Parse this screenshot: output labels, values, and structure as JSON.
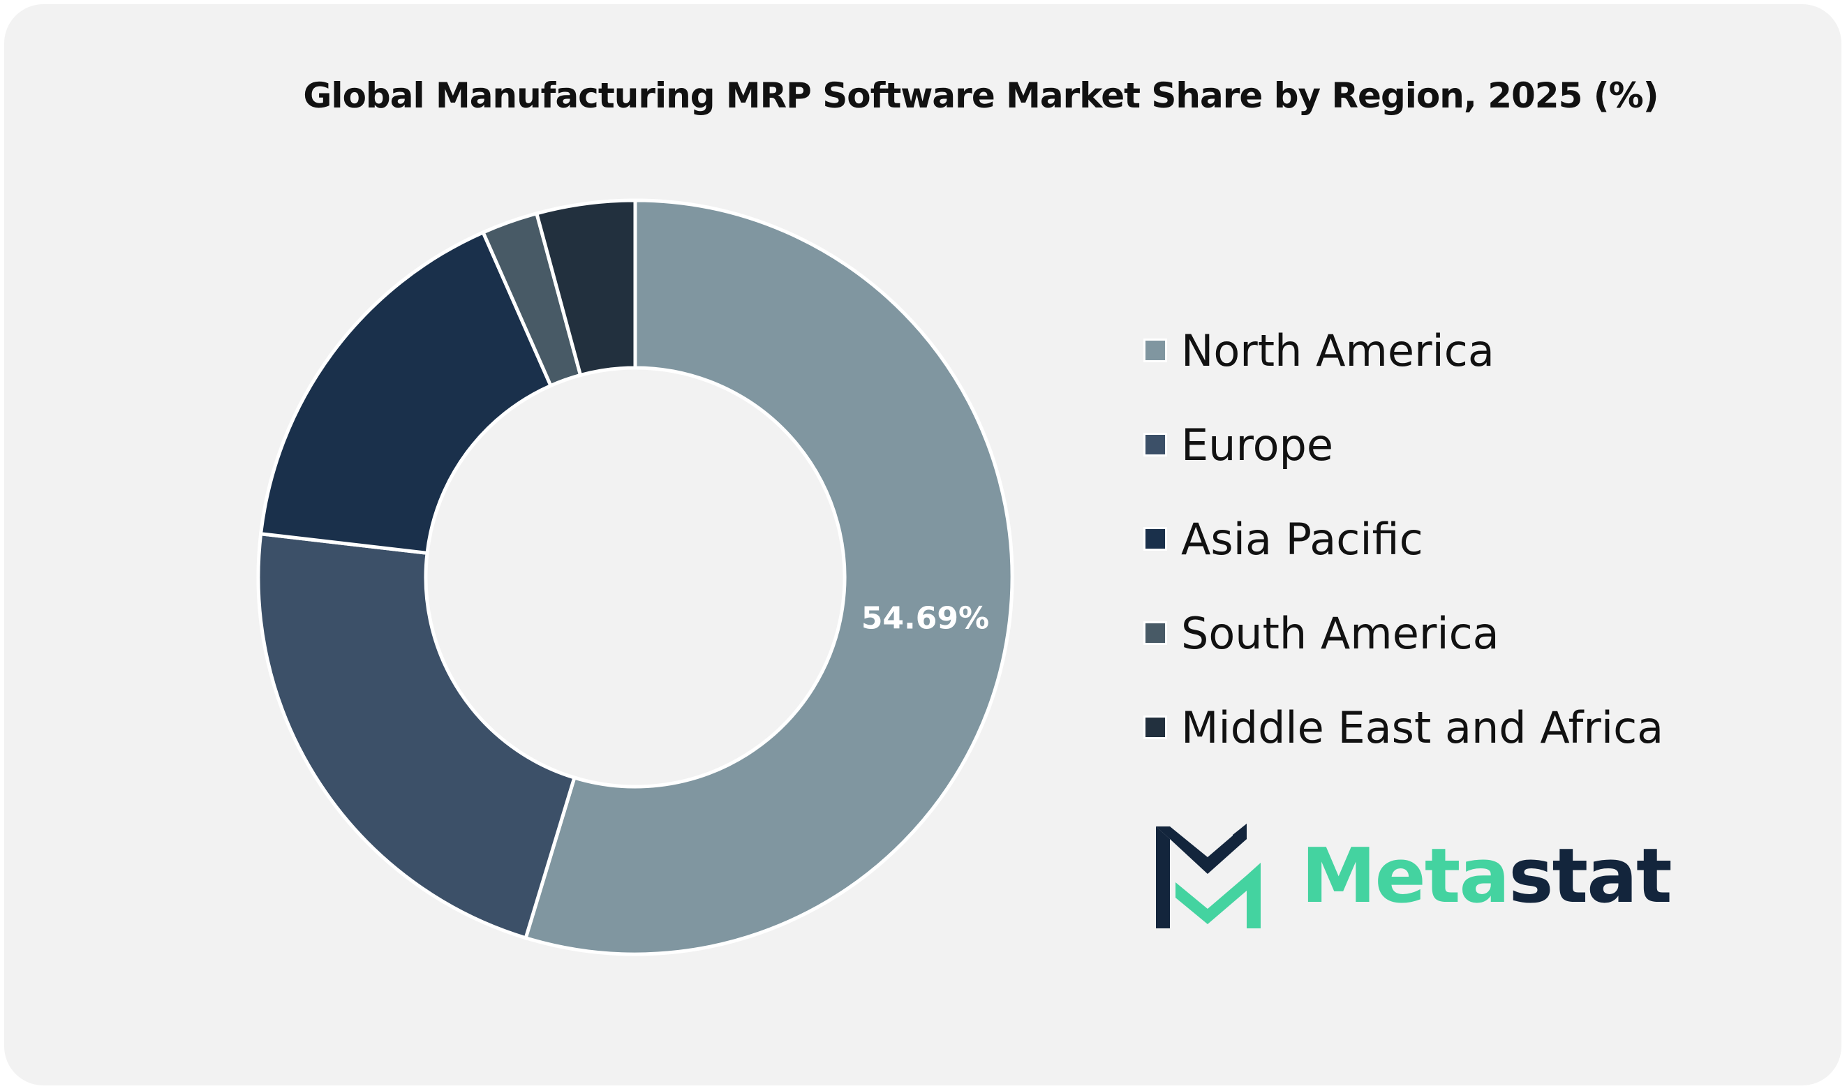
{
  "colors": {
    "background": "#f2f2f2",
    "slice_border": "#ffffff",
    "north_america": "#8096a0",
    "europe": "#3c5068",
    "asia_pacific": "#1a304b",
    "south_america": "#485a66",
    "middle_east_africa": "#22303e",
    "logo_dark": "#13253c",
    "logo_green": "#44d3a0"
  },
  "chart_data": {
    "type": "pie",
    "title": "Global Manufacturing MRP Software Market Share by Region, 2025 (%)",
    "donut": true,
    "legend_position": "right",
    "categories": [
      "North America",
      "Europe",
      "Asia Pacific",
      "South America",
      "Middle East and Africa"
    ],
    "values": [
      54.69,
      22.15,
      16.55,
      2.4,
      4.21
    ],
    "data_labels": [
      "54.69%",
      "",
      "",
      "",
      ""
    ]
  },
  "logo": {
    "brand_part1": "Meta",
    "brand_part2": "stat"
  }
}
